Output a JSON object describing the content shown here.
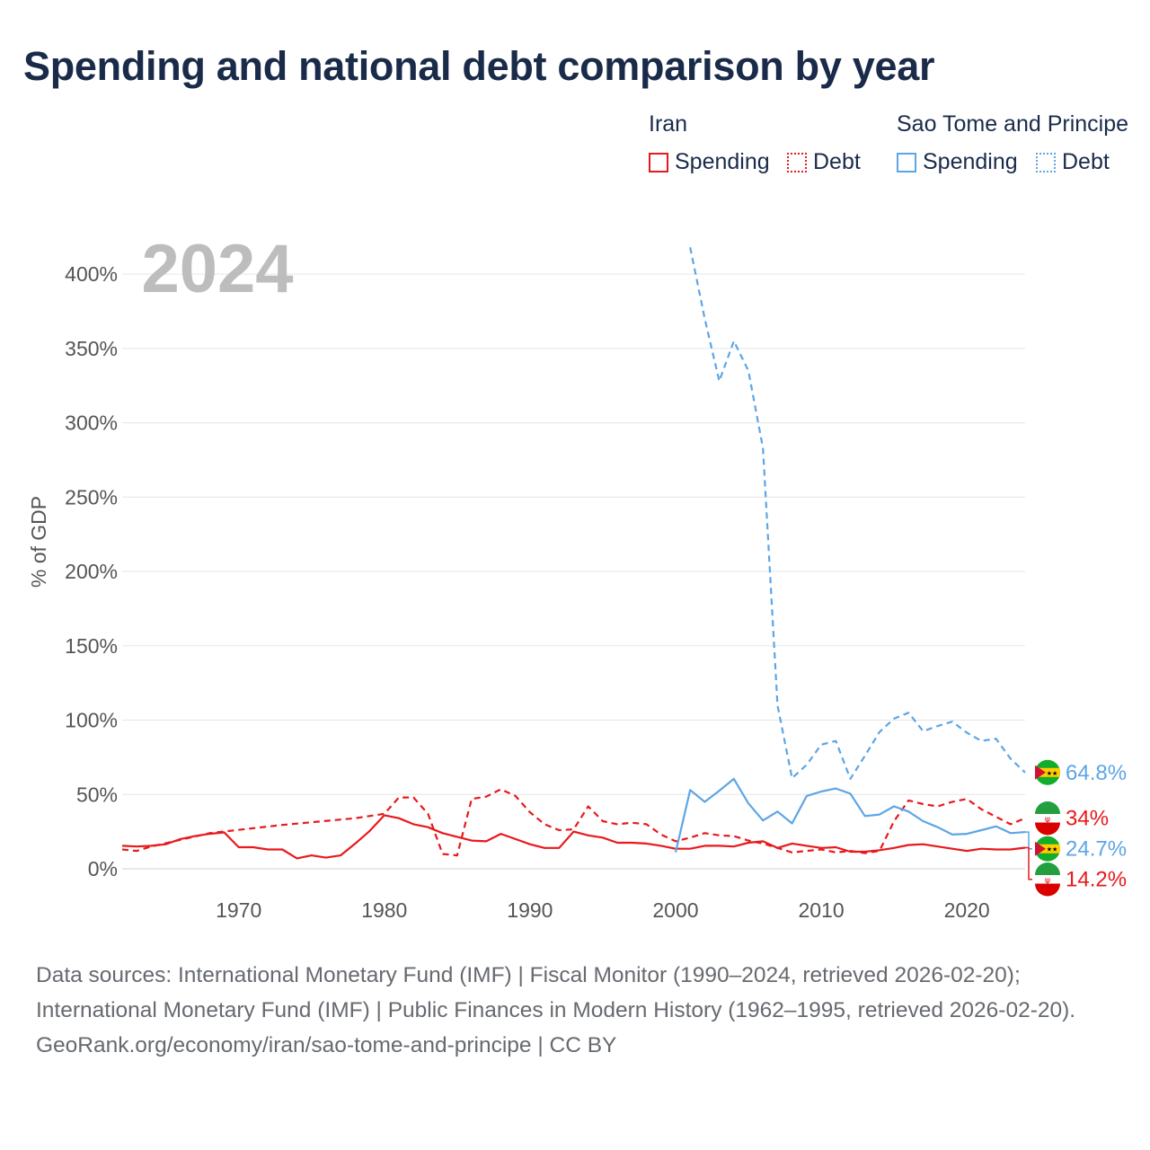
{
  "title": "Spending and national debt comparison by year",
  "year_watermark": "2024",
  "legend": {
    "groups": [
      {
        "name": "Iran",
        "items": [
          {
            "label": "Spending",
            "style": "solid",
            "color": "#e8191c"
          },
          {
            "label": "Debt",
            "style": "dotted",
            "color": "#e8191c"
          }
        ]
      },
      {
        "name": "Sao Tome and Principe",
        "items": [
          {
            "label": "Spending",
            "style": "solid",
            "color": "#5da5e5"
          },
          {
            "label": "Debt",
            "style": "dotted",
            "color": "#5da5e5"
          }
        ]
      }
    ]
  },
  "chart_data": {
    "type": "line",
    "title": "Spending and national debt comparison by year",
    "xlabel": "",
    "ylabel": "% of GDP",
    "xlim": [
      1962,
      2024
    ],
    "ylim": [
      0,
      420
    ],
    "x_ticks": [
      1970,
      1980,
      1990,
      2000,
      2010,
      2020
    ],
    "y_ticks": [
      0,
      50,
      100,
      150,
      200,
      250,
      300,
      350,
      400
    ],
    "y_tick_labels": [
      "0%",
      "50%",
      "100%",
      "150%",
      "200%",
      "250%",
      "300%",
      "350%",
      "400%"
    ],
    "series": [
      {
        "name": "Iran Spending",
        "country": "Iran",
        "measure": "Spending",
        "color": "#e8191c",
        "dash": "solid",
        "end_label": "14.2%",
        "points": [
          [
            1962,
            15.5
          ],
          [
            1963,
            15
          ],
          [
            1964,
            15.5
          ],
          [
            1965,
            16.5
          ],
          [
            1966,
            20
          ],
          [
            1967,
            22
          ],
          [
            1968,
            23.5
          ],
          [
            1969,
            24.5
          ],
          [
            1970,
            14.5
          ],
          [
            1971,
            14.5
          ],
          [
            1972,
            13
          ],
          [
            1973,
            13
          ],
          [
            1974,
            7
          ],
          [
            1975,
            9
          ],
          [
            1976,
            7.5
          ],
          [
            1977,
            9
          ],
          [
            1978,
            17
          ],
          [
            1979,
            25.5
          ],
          [
            1980,
            36
          ],
          [
            1981,
            34
          ],
          [
            1982,
            30
          ],
          [
            1983,
            28
          ],
          [
            1984,
            24
          ],
          [
            1985,
            21.5
          ],
          [
            1986,
            19
          ],
          [
            1987,
            18.5
          ],
          [
            1988,
            23.5
          ],
          [
            1989,
            20
          ],
          [
            1990,
            16.5
          ],
          [
            1991,
            14
          ],
          [
            1992,
            14
          ],
          [
            1993,
            25
          ],
          [
            1994,
            22.5
          ],
          [
            1995,
            21
          ],
          [
            1996,
            17.5
          ],
          [
            1997,
            17.5
          ],
          [
            1998,
            17
          ],
          [
            1999,
            15.5
          ],
          [
            2000,
            13.5
          ],
          [
            2001,
            13.5
          ],
          [
            2002,
            15.5
          ],
          [
            2003,
            15.5
          ],
          [
            2004,
            15
          ],
          [
            2005,
            17.5
          ],
          [
            2006,
            18.5
          ],
          [
            2007,
            14
          ],
          [
            2008,
            17
          ],
          [
            2009,
            15.5
          ],
          [
            2010,
            14
          ],
          [
            2011,
            14.5
          ],
          [
            2012,
            11.5
          ],
          [
            2013,
            11.5
          ],
          [
            2014,
            12.5
          ],
          [
            2015,
            14
          ],
          [
            2016,
            16
          ],
          [
            2017,
            16.5
          ],
          [
            2018,
            15
          ],
          [
            2019,
            13.5
          ],
          [
            2020,
            12
          ],
          [
            2021,
            13.5
          ],
          [
            2022,
            13
          ],
          [
            2023,
            13
          ],
          [
            2024,
            14.2
          ]
        ]
      },
      {
        "name": "Iran Debt",
        "country": "Iran",
        "measure": "Debt",
        "color": "#e8191c",
        "dash": "dashed",
        "end_label": "34%",
        "points": [
          [
            1962,
            13
          ],
          [
            1963,
            12
          ],
          [
            1964,
            15
          ],
          [
            1968,
            24
          ],
          [
            1973,
            29.5
          ],
          [
            1978,
            34
          ],
          [
            1980,
            37
          ],
          [
            1981,
            48
          ],
          [
            1982,
            48
          ],
          [
            1983,
            37
          ],
          [
            1984,
            10
          ],
          [
            1985,
            9
          ],
          [
            1986,
            47
          ],
          [
            1987,
            48.5
          ],
          [
            1988,
            53.5
          ],
          [
            1989,
            49
          ],
          [
            1990,
            38
          ],
          [
            1991,
            30
          ],
          [
            1992,
            26
          ],
          [
            1993,
            26.5
          ],
          [
            1994,
            42
          ],
          [
            1995,
            32
          ],
          [
            1996,
            30
          ],
          [
            1997,
            31
          ],
          [
            1998,
            30
          ],
          [
            1999,
            23
          ],
          [
            2000,
            18.5
          ],
          [
            2001,
            21
          ],
          [
            2002,
            24
          ],
          [
            2003,
            22.5
          ],
          [
            2004,
            22
          ],
          [
            2005,
            19
          ],
          [
            2006,
            17
          ],
          [
            2007,
            14
          ],
          [
            2008,
            11
          ],
          [
            2009,
            12
          ],
          [
            2010,
            13
          ],
          [
            2011,
            11
          ],
          [
            2012,
            12
          ],
          [
            2013,
            10.5
          ],
          [
            2014,
            12
          ],
          [
            2015,
            32
          ],
          [
            2016,
            46
          ],
          [
            2017,
            43.5
          ],
          [
            2018,
            42
          ],
          [
            2019,
            45
          ],
          [
            2020,
            47
          ],
          [
            2021,
            40
          ],
          [
            2022,
            35
          ],
          [
            2023,
            30
          ],
          [
            2024,
            34
          ]
        ]
      },
      {
        "name": "Sao Tome and Principe Spending",
        "country": "Sao Tome and Principe",
        "measure": "Spending",
        "color": "#5da5e5",
        "dash": "solid",
        "end_label": "24.7%",
        "points": [
          [
            2000,
            11
          ],
          [
            2001,
            53
          ],
          [
            2002,
            45
          ],
          [
            2003,
            52.5
          ],
          [
            2004,
            60.5
          ],
          [
            2005,
            44
          ],
          [
            2006,
            32.5
          ],
          [
            2007,
            38.5
          ],
          [
            2008,
            30.5
          ],
          [
            2009,
            49
          ],
          [
            2010,
            52
          ],
          [
            2011,
            54
          ],
          [
            2012,
            50.5
          ],
          [
            2013,
            35.5
          ],
          [
            2014,
            36.5
          ],
          [
            2015,
            42
          ],
          [
            2016,
            38.5
          ],
          [
            2017,
            32
          ],
          [
            2018,
            28
          ],
          [
            2019,
            23
          ],
          [
            2020,
            23.5
          ],
          [
            2021,
            26
          ],
          [
            2022,
            28.5
          ],
          [
            2023,
            24
          ],
          [
            2024,
            24.7
          ]
        ]
      },
      {
        "name": "Sao Tome and Principe Debt",
        "country": "Sao Tome and Principe",
        "measure": "Debt",
        "color": "#5da5e5",
        "dash": "dashed",
        "end_label": "64.8%",
        "points": [
          [
            2001,
            418
          ],
          [
            2002,
            370
          ],
          [
            2003,
            328
          ],
          [
            2004,
            355
          ],
          [
            2005,
            335
          ],
          [
            2006,
            283
          ],
          [
            2007,
            110
          ],
          [
            2008,
            61
          ],
          [
            2009,
            70
          ],
          [
            2010,
            83.5
          ],
          [
            2011,
            86
          ],
          [
            2012,
            60.5
          ],
          [
            2013,
            76
          ],
          [
            2014,
            92
          ],
          [
            2015,
            101
          ],
          [
            2016,
            105
          ],
          [
            2017,
            92.5
          ],
          [
            2018,
            96
          ],
          [
            2019,
            99
          ],
          [
            2020,
            91.5
          ],
          [
            2021,
            86
          ],
          [
            2022,
            87.5
          ],
          [
            2023,
            74
          ],
          [
            2024,
            64.8
          ]
        ]
      }
    ]
  },
  "footer": {
    "sources": "Data sources: International Monetary Fund (IMF) | Fiscal Monitor (1990–2024, retrieved 2026-02-20); International Monetary Fund (IMF) | Public Finances in Modern History (1962–1995, retrieved 2026-02-20).",
    "credit": "GeoRank.org/economy/iran/sao-tome-and-principe | CC BY"
  }
}
